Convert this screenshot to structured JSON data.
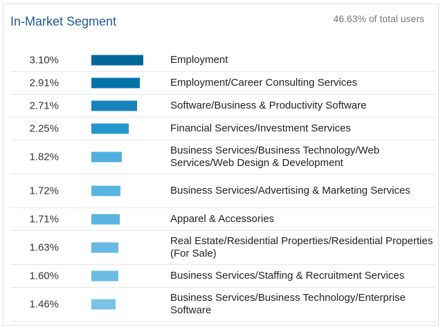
{
  "header": {
    "title": "In-Market Segment",
    "share_of_total": "46.63% of total users"
  },
  "rows": [
    {
      "percent": "3.10%",
      "value": 3.1,
      "label": "Employment",
      "color": "#00679a"
    },
    {
      "percent": "2.91%",
      "value": 2.91,
      "label": "Employment/Career Consulting Services",
      "color": "#0072a8"
    },
    {
      "percent": "2.71%",
      "value": 2.71,
      "label": "Software/Business & Productivity Software",
      "color": "#1882bd"
    },
    {
      "percent": "2.25%",
      "value": 2.25,
      "label": "Financial Services/Investment Services",
      "color": "#2498cc"
    },
    {
      "percent": "1.82%",
      "value": 1.82,
      "label": "Business Services/Business Technology/Web Services/Web Design & Development",
      "color": "#4fb0df"
    },
    {
      "percent": "1.72%",
      "value": 1.72,
      "label": "Business Services/Advertising & Marketing Services",
      "color": "#58b4e0"
    },
    {
      "percent": "1.71%",
      "value": 1.71,
      "label": "Apparel & Accessories",
      "color": "#58b4e0"
    },
    {
      "percent": "1.63%",
      "value": 1.63,
      "label": "Real Estate/Residential Properties/Residential Properties (For Sale)",
      "color": "#66bae3"
    },
    {
      "percent": "1.60%",
      "value": 1.6,
      "label": "Business Services/Staffing & Recruitment Services",
      "color": "#6cbde4"
    },
    {
      "percent": "1.46%",
      "value": 1.46,
      "label": "Business Services/Business Technology/Enterprise Software",
      "color": "#7ac3e6"
    }
  ]
}
